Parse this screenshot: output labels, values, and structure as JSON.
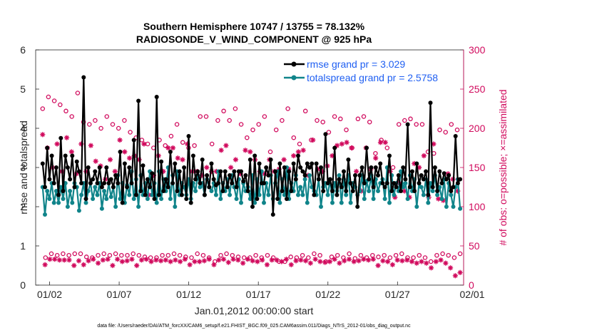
{
  "chart_data": {
    "type": "line",
    "title": "Southern Hemisphere 10747 / 13755 = 78.132%",
    "subtitle": "RADIOSONDE_V_WIND_COMPONENT @ 925 hPa",
    "xlabel": "Jan.01,2012 00:00:00 start",
    "ylabel_left": "rmse and totalspread",
    "ylabel_right": "# of obs: o=possible; ×=assimilated",
    "ylim_left": [
      0,
      6
    ],
    "ylim_right": [
      0,
      300
    ],
    "xlim": [
      0.5,
      31.25
    ],
    "yticks_left": [
      "0",
      "1",
      "2",
      "3",
      "4",
      "5",
      "6"
    ],
    "yticks_right": [
      "0",
      "50",
      "100",
      "150",
      "200",
      "250",
      "300"
    ],
    "xticks": [
      {
        "day": 1.5,
        "label": "01/02"
      },
      {
        "day": 6.5,
        "label": "01/07"
      },
      {
        "day": 11.5,
        "label": "01/12"
      },
      {
        "day": 16.5,
        "label": "01/17"
      },
      {
        "day": 21.5,
        "label": "01/22"
      },
      {
        "day": 26.5,
        "label": "01/27"
      },
      {
        "day": 31.5,
        "label": "02/01"
      }
    ],
    "footer": "data file: /Users/raeder/DAI/ATM_forcXX/CAM6_setup/f.e21.FHIST_BGC.f09_025.CAM6assim.011/Diags_NTrS_2012-01/obs_diag_output.nc",
    "series": [
      {
        "name": "rmse",
        "legend_label": "rmse grand pr = 3.029",
        "color": "#000000",
        "axis": "left",
        "marker": "filled-circle",
        "values": [
          3.1,
          2.5,
          3.5,
          2.7,
          3.3,
          2.6,
          3.0,
          2.3,
          3.75,
          2.4,
          3.3,
          3.0,
          2.7,
          3.3,
          2.5,
          3.15,
          2.9,
          2.6,
          5.3,
          2.2,
          3.0,
          2.6,
          2.7,
          2.9,
          2.6,
          3.0,
          2.5,
          2.6,
          3.0,
          2.6,
          2.7,
          2.5,
          2.8,
          2.6,
          3.4,
          2.1,
          3.1,
          2.5,
          3.0,
          2.6,
          3.7,
          2.3,
          4.7,
          2.4,
          3.05,
          2.3,
          2.7,
          2.5,
          2.85,
          2.2,
          4.8,
          2.3,
          3.15,
          2.4,
          2.7,
          2.5,
          3.4,
          2.6,
          3.1,
          2.4,
          2.9,
          2.3,
          3.0,
          2.2,
          3.8,
          2.1,
          3.3,
          2.7,
          2.9,
          2.6,
          3.2,
          2.3,
          2.8,
          2.5,
          3.1,
          2.7,
          2.55,
          2.6,
          2.9,
          2.4,
          2.9,
          2.5,
          2.8,
          2.6,
          2.9,
          2.5,
          2.9,
          2.9,
          2.65,
          2.8,
          2.4,
          3.2,
          2.0,
          3.3,
          2.2,
          3.1,
          2.6,
          2.6,
          3.0,
          2.8,
          3.2,
          1.8,
          2.9,
          2.2,
          3.1,
          2.4,
          3.0,
          2.2,
          2.9,
          2.4,
          3.1,
          2.7,
          3.3,
          3.0,
          2.9,
          2.8,
          3.1,
          3.0,
          3.1,
          2.3,
          3.1,
          2.7,
          3.0,
          2.4,
          3.85,
          2.6,
          2.7,
          2.4,
          3.5,
          2.3,
          2.7,
          2.5,
          2.9,
          2.4,
          3.2,
          2.6,
          2.4,
          2.8,
          2.0,
          2.8,
          3.0,
          2.6,
          3.5,
          2.7,
          3.0,
          2.5,
          3.0,
          2.8,
          3.1,
          2.6,
          2.5,
          2.6,
          3.3,
          2.4,
          2.6,
          2.5,
          2.8,
          2.4,
          3.0,
          2.7,
          4.1,
          2.5,
          2.9,
          2.4,
          3.1,
          2.6,
          2.8,
          2.7,
          2.9,
          2.3,
          4.65,
          2.5,
          3.0,
          2.4,
          2.9,
          2.6,
          2.85,
          2.7,
          2.8,
          2.4,
          2.5,
          3.8,
          2.6,
          2.7
        ]
      },
      {
        "name": "totalspread",
        "legend_label": "totalspread grand pr = 2.5758",
        "color": "#10848a",
        "axis": "left",
        "marker": "filled-circle",
        "values": [
          2.5,
          1.8,
          2.4,
          2.2,
          2.6,
          2.1,
          2.4,
          2.1,
          2.5,
          2.2,
          2.6,
          2.0,
          2.4,
          2.1,
          2.6,
          2.5,
          1.9,
          2.3,
          2.6,
          2.1,
          2.4,
          2.6,
          2.2,
          2.5,
          2.3,
          2.6,
          1.95,
          2.4,
          2.2,
          2.6,
          2.25,
          2.5,
          2.0,
          2.8,
          2.2,
          2.6,
          2.1,
          2.55,
          2.3,
          2.9,
          2.2,
          2.7,
          2.0,
          2.8,
          2.3,
          2.6,
          2.2,
          2.9,
          2.3,
          2.6,
          2.1,
          2.9,
          2.2,
          2.7,
          2.4,
          3.0,
          2.2,
          2.8,
          2.0,
          2.9,
          2.3,
          2.6,
          2.5,
          2.3,
          2.7,
          2.2,
          2.6,
          2.4,
          2.8,
          2.5,
          2.6,
          2.3,
          2.7,
          2.5,
          2.4,
          2.6,
          2.3,
          2.9,
          2.2,
          2.6,
          2.4,
          2.7,
          2.3,
          2.8,
          2.5,
          2.2,
          2.7,
          2.1,
          2.6,
          2.4,
          2.5,
          2.2,
          2.8,
          2.1,
          2.7,
          2.3,
          2.9,
          2.1,
          2.6,
          2.3,
          2.8,
          2.2,
          2.6,
          2.9,
          2.1,
          2.7,
          2.3,
          3.0,
          2.2,
          2.6,
          2.4,
          2.8,
          2.3,
          2.5,
          2.3,
          2.7,
          2.1,
          2.8,
          2.5,
          2.4,
          2.3,
          2.7,
          2.0,
          2.5,
          2.6,
          2.3,
          2.7,
          2.1,
          2.6,
          2.4,
          2.8,
          2.1,
          2.7,
          2.3,
          2.8,
          2.1,
          2.6,
          2.5,
          2.3,
          2.4,
          2.8,
          2.2,
          2.65,
          2.4,
          2.8,
          2.2,
          2.7,
          2.4,
          2.6,
          2.7,
          2.2,
          3.0,
          2.1,
          2.8,
          2.3,
          2.6,
          2.4,
          2.9,
          2.5,
          2.6,
          2.2,
          2.8,
          2.4,
          2.7,
          2.0,
          2.6,
          2.5,
          2.3,
          2.7,
          2.1,
          2.6,
          2.4,
          2.8,
          2.3,
          2.5,
          2.2,
          2.7,
          2.0,
          2.6,
          2.3,
          2.0,
          2.5,
          2.7,
          1.95
        ]
      },
      {
        "name": "obs_possible",
        "legend_label": "possible",
        "color": "#d10a5d",
        "axis": "right",
        "marker": "open-circle",
        "values": [
          225,
          35,
          240,
          40,
          235,
          38,
          230,
          40,
          222,
          38,
          215,
          40,
          245,
          40,
          208,
          36,
          205,
          35,
          210,
          38,
          200,
          40,
          215,
          38,
          205,
          40,
          200,
          38,
          210,
          38,
          195,
          40,
          188,
          38,
          185,
          36,
          180,
          35,
          175,
          35,
          185,
          38,
          178,
          38,
          190,
          40,
          205,
          38,
          182,
          36,
          175,
          35,
          178,
          40,
          215,
          38,
          215,
          35,
          180,
          30,
          210,
          38,
          222,
          40,
          210,
          38,
          225,
          36,
          205,
          35,
          188,
          35,
          198,
          38,
          205,
          35,
          215,
          38,
          170,
          35,
          198,
          30,
          210,
          30,
          225,
          36,
          188,
          35,
          180,
          38,
          222,
          35,
          185,
          40,
          210,
          38,
          208,
          30,
          195,
          36,
          215,
          38,
          212,
          35,
          198,
          40,
          175,
          34,
          212,
          38,
          215,
          35,
          208,
          38,
          168,
          36,
          185,
          38,
          175,
          35,
          150,
          38,
          205,
          40,
          210,
          35,
          212,
          35,
          205,
          38,
          205,
          35,
          170,
          30,
          168,
          38,
          198,
          40,
          195,
          38,
          205,
          35,
          198,
          40
        ]
      },
      {
        "name": "obs_assimilated",
        "legend_label": "assimilated",
        "color": "#d10a5d",
        "axis": "right",
        "marker": "asterisk",
        "values": [
          192,
          26,
          175,
          33,
          150,
          33,
          180,
          32,
          145,
          32,
          188,
          32,
          170,
          25,
          142,
          31,
          180,
          26,
          145,
          31,
          178,
          33,
          158,
          28,
          152,
          32,
          135,
          33,
          160,
          25,
          145,
          33,
          185,
          30,
          170,
          31,
          162,
          33,
          165,
          25,
          160,
          32,
          180,
          33,
          115,
          30,
          140,
          32,
          165,
          31,
          145,
          32,
          175,
          30,
          175,
          32,
          162,
          30,
          160,
          33,
          180,
          26,
          145,
          30,
          145,
          30,
          140,
          31,
          150,
          33,
          145,
          26,
          145,
          32,
          172,
          33,
          178,
          29,
          150,
          33,
          160,
          32,
          142,
          28,
          172,
          33,
          170,
          31,
          160,
          30,
          145,
          32,
          142,
          26,
          160,
          32,
          145,
          32,
          148,
          30,
          160,
          33,
          148,
          26,
          165,
          31,
          170,
          32,
          172,
          31,
          140,
          28,
          185,
          33,
          148,
          30,
          145,
          29,
          152,
          30,
          165,
          33,
          178,
          28,
          180,
          31,
          182,
          33,
          175,
          30,
          145,
          31,
          120,
          33,
          175,
          32,
          148,
          33,
          162,
          25,
          182,
          31,
          182,
          30,
          145,
          26,
          112,
          32,
          130,
          31,
          120,
          32,
          112,
          30,
          155,
          28,
          150,
          30,
          165,
          28,
          112,
          22,
          180,
          30,
          110,
          32,
          108,
          28,
          142,
          22,
          135,
          12,
          120,
          16
        ]
      }
    ]
  }
}
